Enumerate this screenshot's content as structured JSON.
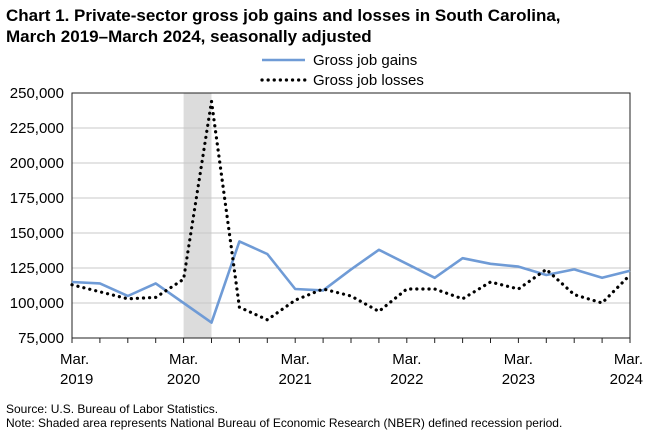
{
  "title_line1": "Chart 1. Private-sector gross job gains and losses in South Carolina,",
  "title_line2": "March 2019–March 2024, seasonally adjusted",
  "source": "Source: U.S. Bureau of Labor Statistics.",
  "note": "Note: Shaded area represents National Bureau of Economic Research (NBER) defined  recession period.",
  "chart_data": {
    "type": "line",
    "x": [
      "2019-03",
      "2019-06",
      "2019-09",
      "2019-12",
      "2020-03",
      "2020-06",
      "2020-09",
      "2020-12",
      "2021-03",
      "2021-06",
      "2021-09",
      "2021-12",
      "2022-03",
      "2022-06",
      "2022-09",
      "2022-12",
      "2023-03",
      "2023-06",
      "2023-09",
      "2023-12",
      "2024-03"
    ],
    "series": [
      {
        "name": "Gross job gains",
        "color": "#6f9bd6",
        "style": "solid",
        "values": [
          115000,
          114000,
          105000,
          114000,
          100000,
          86000,
          144000,
          135000,
          110000,
          109000,
          124000,
          138000,
          128000,
          118000,
          132000,
          128000,
          126000,
          120000,
          124000,
          118000,
          123000
        ]
      },
      {
        "name": "Gross job losses",
        "color": "#000000",
        "style": "dotted",
        "values": [
          113000,
          108000,
          103000,
          104000,
          117000,
          244000,
          97000,
          88000,
          102000,
          110000,
          105000,
          94000,
          110000,
          110000,
          103000,
          115000,
          110000,
          124000,
          106000,
          100000,
          120000
        ]
      }
    ],
    "ylim": [
      75000,
      250000
    ],
    "yticks": [
      "75,000",
      "100,000",
      "125,000",
      "150,000",
      "175,000",
      "200,000",
      "225,000",
      "250,000"
    ],
    "xtick_labels": [
      {
        "month": "Mar.",
        "year": "2019"
      },
      {
        "month": "Mar.",
        "year": "2020"
      },
      {
        "month": "Mar.",
        "year": "2021"
      },
      {
        "month": "Mar.",
        "year": "2022"
      },
      {
        "month": "Mar.",
        "year": "2023"
      },
      {
        "month": "Mar.",
        "year": "2024"
      }
    ],
    "recession_shading": {
      "start": "2020-03",
      "end": "2020-06",
      "color": "#dcdcdc"
    },
    "grid": true,
    "legend": "top-center"
  }
}
